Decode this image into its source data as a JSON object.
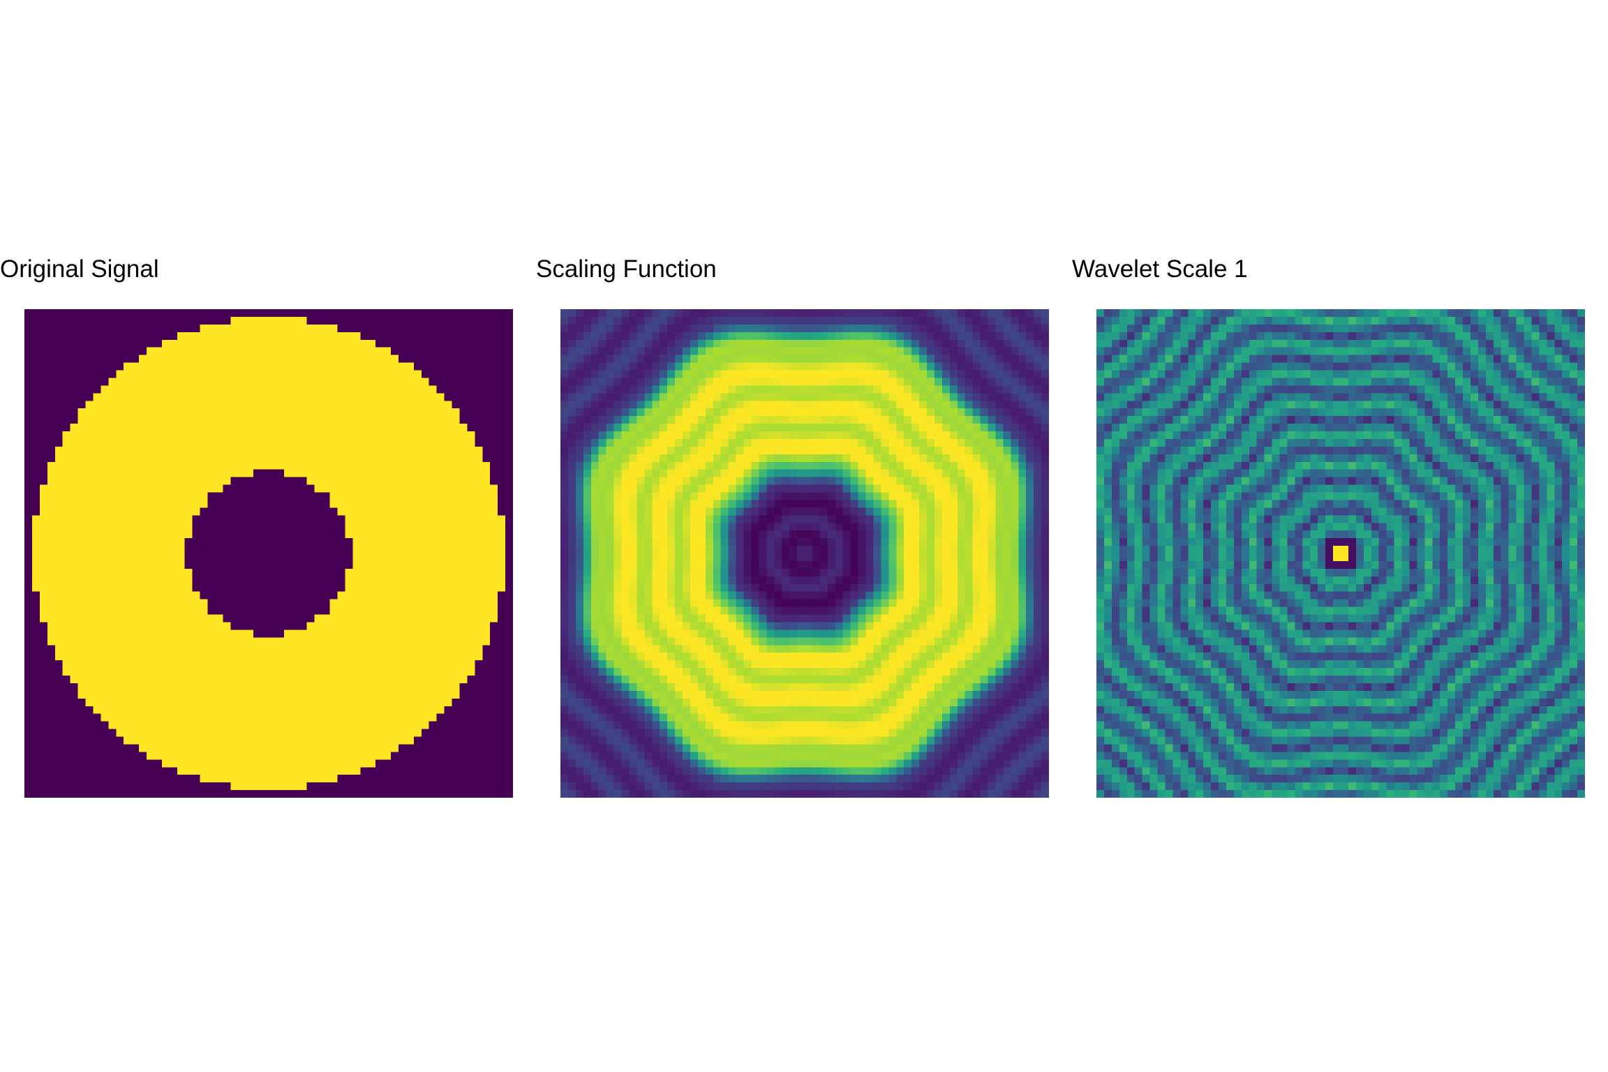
{
  "chart_data": [
    {
      "type": "heatmap",
      "title": "Original Signal",
      "grid": false,
      "axes_visible": false,
      "colormap": "viridis",
      "resolution": 64,
      "pattern": "annulus",
      "description_values": {
        "inner_radius": 0.166,
        "outer_radius": 0.482
      }
    },
    {
      "type": "heatmap",
      "title": "Scaling Function",
      "grid": false,
      "axes_visible": false,
      "colormap": "viridis",
      "resolution": 64,
      "pattern": "smoothed-annulus"
    },
    {
      "type": "heatmap",
      "title": "Wavelet Scale 1",
      "grid": false,
      "axes_visible": false,
      "colormap": "viridis",
      "resolution": 64,
      "pattern": "ringing-detail"
    }
  ],
  "colors": {
    "viridis_low": "#440154",
    "viridis_mid": "#21918c",
    "viridis_high": "#fde725"
  }
}
